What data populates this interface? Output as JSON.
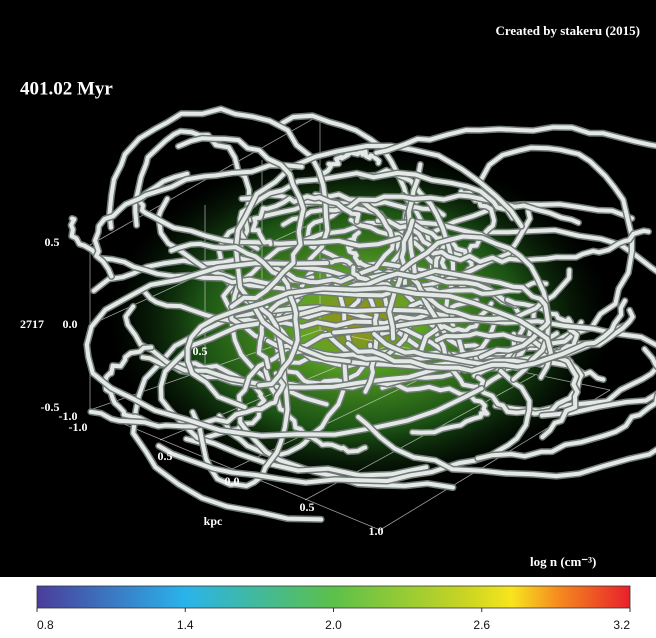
{
  "credit": "Created by stakeru (2015)",
  "time": "401.02 Myr",
  "axis_labels": [
    "0.5",
    "0.0",
    "2717",
    "-0.5",
    "-1.0",
    "-1.0",
    "0.5",
    "0.0",
    "0.5",
    "1.0",
    "kpc",
    "0.5"
  ],
  "colorbar": {
    "title": "log n (cm⁻³)",
    "lim": [
      0.8,
      3.2
    ],
    "ticks": [
      0.8,
      1.4,
      {
        "value": 2,
        "label": "2.0"
      },
      2.6,
      3.2
    ]
  }
}
